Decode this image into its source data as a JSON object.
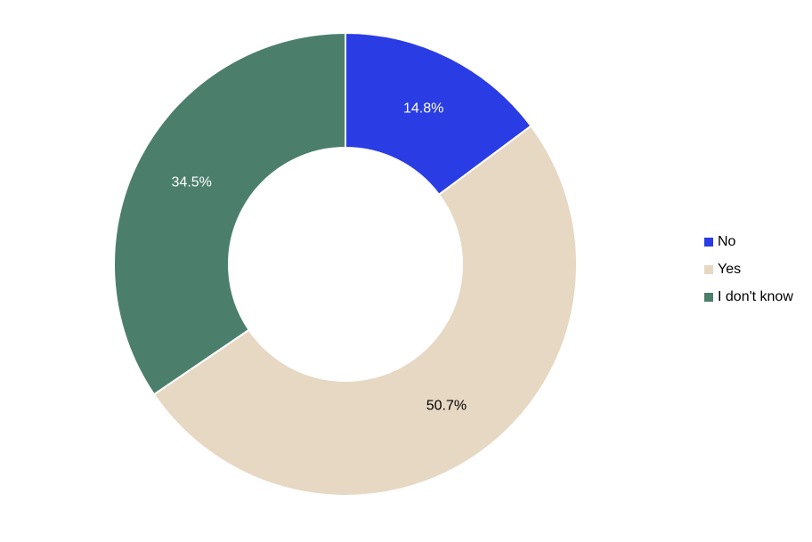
{
  "chart_data": {
    "type": "pie",
    "variant": "donut",
    "slices": [
      {
        "label": "No",
        "value": 14.8,
        "display": "14.8%",
        "color": "#2a3de4",
        "label_color": "#ffffff"
      },
      {
        "label": "Yes",
        "value": 50.7,
        "display": "50.7%",
        "color": "#e7d8c3",
        "label_color": "#000000"
      },
      {
        "label": "I don't know",
        "value": 34.5,
        "display": "34.5%",
        "color": "#4b7f6c",
        "label_color": "#ffffff"
      }
    ],
    "start_angle": "12 o'clock",
    "direction": "clockwise",
    "legend_position": "right"
  }
}
